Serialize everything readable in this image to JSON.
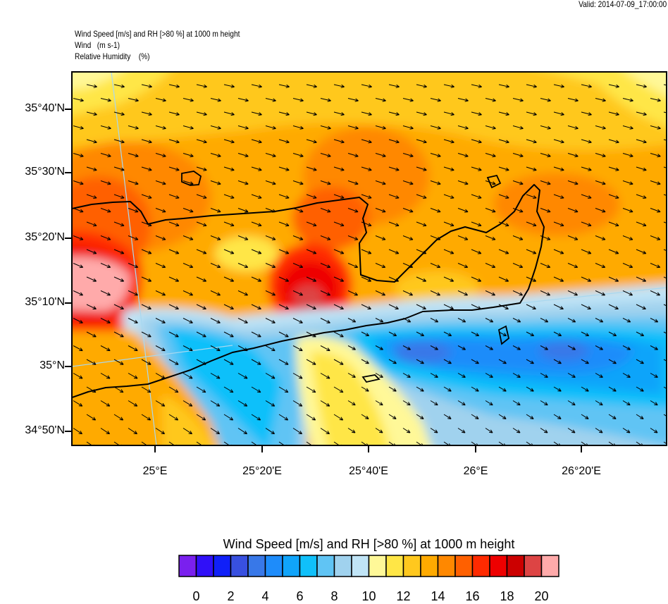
{
  "valid_time": "Valid: 2014-07-09_17:00:00",
  "header": {
    "line1": "Wind Speed [m/s] and RH [>80 %] at 1000 m height",
    "line2": "Wind   (m s-1)",
    "line3": "Relative Humidity    (%)"
  },
  "map": {
    "lat_labels": [
      "35°40'N",
      "35°30'N",
      "35°20'N",
      "35°10'N",
      "35°N",
      "34°50'N"
    ],
    "lon_labels": [
      "25°E",
      "25°20'E",
      "25°40'E",
      "26°E",
      "26°20'E"
    ],
    "wind_direction": "east-southeast"
  },
  "colorbar": {
    "title": "Wind Speed [m/s] and RH [>80 %] at 1000 m height",
    "labels": [
      "0",
      "2",
      "4",
      "6",
      "8",
      "10",
      "12",
      "14",
      "16",
      "18",
      "20"
    ],
    "colors": [
      "#7a20ee",
      "#3010f8",
      "#1020f8",
      "#3850e0",
      "#3878e8",
      "#1e8cfa",
      "#10a4fa",
      "#10c0fa",
      "#60c4f4",
      "#a0d2ee",
      "#c0e4f6",
      "#fff898",
      "#ffe646",
      "#ffc81e",
      "#ffaa00",
      "#ff8800",
      "#ff6000",
      "#ff2a00",
      "#ee0000",
      "#cc0000",
      "#dd4444",
      "#ffaaaa"
    ]
  }
}
